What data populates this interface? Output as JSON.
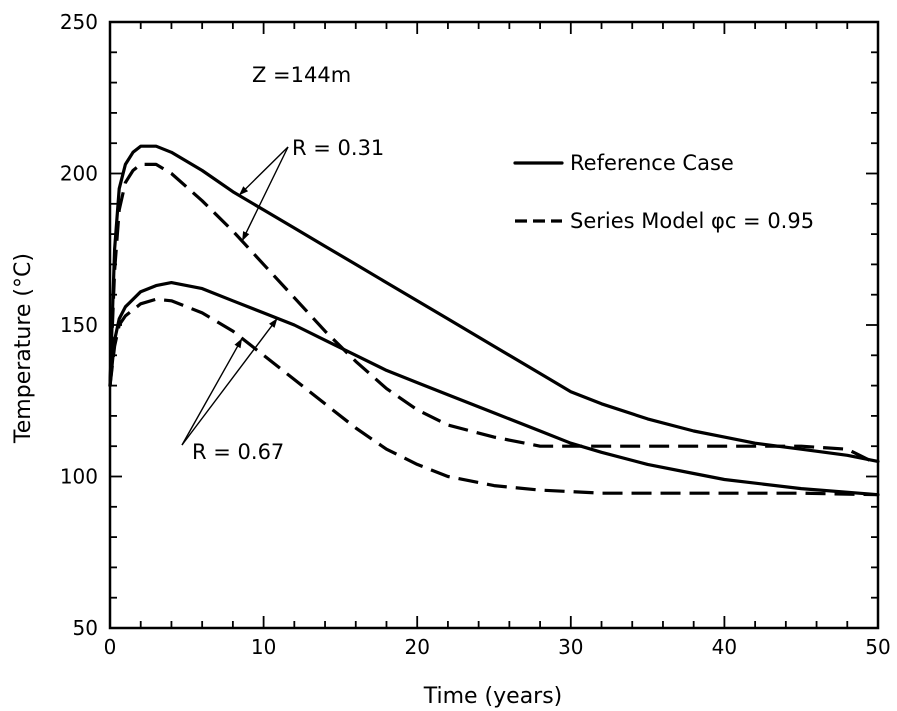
{
  "chart_data": {
    "type": "line",
    "xlabel": "Time (years)",
    "ylabel": "Temperature (°C)",
    "xlim": [
      0,
      50
    ],
    "ylim": [
      50,
      250
    ],
    "x_ticks": [
      0,
      10,
      20,
      30,
      40,
      50
    ],
    "y_ticks": [
      50,
      100,
      150,
      200,
      250
    ],
    "x_tick_labels": [
      "0",
      "10",
      "20",
      "30",
      "40",
      "50"
    ],
    "y_tick_labels": [
      "50",
      "100",
      "150",
      "200",
      "250"
    ],
    "grid": false,
    "legend_position": "top-right",
    "legend": [
      {
        "label": "Reference Case",
        "style": "solid"
      },
      {
        "label": "Series Model φc = 0.95",
        "style": "dashed"
      }
    ],
    "annotations": {
      "depth": "Z =144m",
      "r_high": "R = 0.31",
      "r_low": "R = 0.67"
    },
    "series": [
      {
        "group": "R = 0.31",
        "style": "solid",
        "x": [
          0,
          0.3,
          0.6,
          1,
          1.5,
          2,
          3,
          4,
          6,
          8,
          10,
          12,
          14,
          16,
          18,
          20,
          22,
          25,
          28,
          30,
          32,
          35,
          38,
          40,
          42,
          45,
          48,
          50
        ],
        "y": [
          130,
          175,
          195,
          203,
          207,
          209,
          209,
          207,
          201,
          194,
          188,
          182,
          176,
          170,
          164,
          158,
          152,
          143,
          134,
          128,
          124,
          119,
          115,
          113,
          111,
          109,
          107,
          105
        ]
      },
      {
        "group": "R = 0.31",
        "style": "dashed",
        "x": [
          0,
          0.3,
          0.6,
          1,
          1.5,
          2,
          3,
          4,
          6,
          8,
          10,
          12,
          14,
          16,
          18,
          20,
          22,
          25,
          28,
          30,
          32,
          35,
          38,
          40,
          45,
          48,
          50
        ],
        "y": [
          130,
          168,
          188,
          197,
          201,
          203,
          203,
          200,
          191,
          181,
          170,
          159,
          148,
          138,
          129,
          122,
          117,
          113,
          110,
          110,
          110,
          110,
          110,
          110,
          110,
          109,
          104
        ]
      },
      {
        "group": "R = 0.67",
        "style": "solid",
        "x": [
          0,
          0.3,
          0.6,
          1,
          2,
          3,
          4,
          5,
          6,
          8,
          10,
          12,
          14,
          16,
          18,
          20,
          22,
          25,
          28,
          30,
          32,
          35,
          38,
          40,
          45,
          50
        ],
        "y": [
          130,
          145,
          152,
          156,
          161,
          163,
          164,
          163,
          162,
          158,
          154,
          150,
          145,
          140,
          135,
          131,
          127,
          121,
          115,
          111,
          108,
          104,
          101,
          99,
          96,
          94
        ]
      },
      {
        "group": "R = 0.67",
        "style": "dashed",
        "x": [
          0,
          0.3,
          0.6,
          1,
          2,
          3,
          4,
          5,
          6,
          8,
          10,
          12,
          14,
          16,
          18,
          20,
          22,
          25,
          28,
          30,
          32,
          35,
          40,
          45,
          50
        ],
        "y": [
          130,
          143,
          150,
          153,
          157,
          158.5,
          158,
          156,
          154,
          148,
          140,
          132,
          124,
          116,
          109,
          104,
          100,
          97,
          95.5,
          95,
          94.5,
          94.5,
          94.5,
          94.5,
          94
        ]
      }
    ]
  }
}
